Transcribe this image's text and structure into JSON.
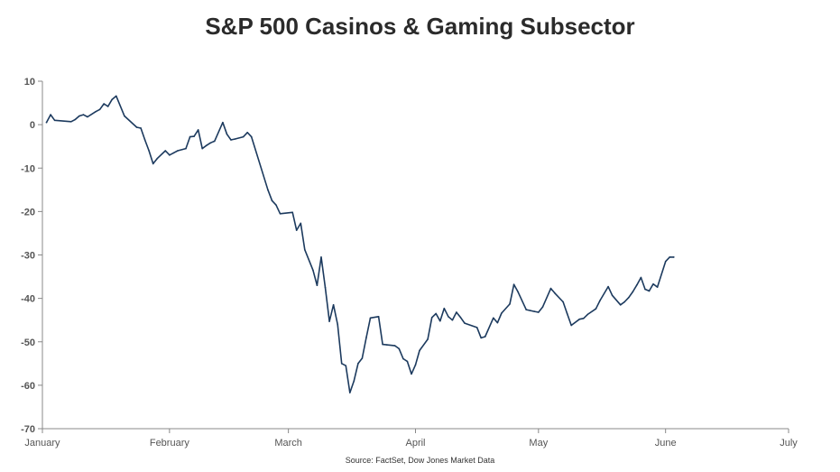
{
  "chart_data": {
    "type": "line",
    "title": "S&P 500 Casinos & Gaming Subsector",
    "source": "Source: FactSet, Dow Jones Market Data",
    "xlabel": "",
    "ylabel": "",
    "ylim": [
      -70,
      10
    ],
    "xlim": [
      "2020-01-01",
      "2020-07-01"
    ],
    "y_ticks": [
      10,
      0,
      -10,
      -20,
      -30,
      -40,
      -50,
      -60,
      -70
    ],
    "x_ticks": [
      {
        "label": "January",
        "date": "2020-01-01"
      },
      {
        "label": "February",
        "date": "2020-02-01"
      },
      {
        "label": "March",
        "date": "2020-03-01"
      },
      {
        "label": "April",
        "date": "2020-04-01"
      },
      {
        "label": "May",
        "date": "2020-05-01"
      },
      {
        "label": "June",
        "date": "2020-06-01"
      },
      {
        "label": "July",
        "date": "2020-07-01"
      }
    ],
    "grid": false,
    "line_color": "#1c3a5e",
    "series": [
      {
        "x": [
          "2020-01-02",
          "2020-01-03",
          "2020-01-04",
          "2020-01-08",
          "2020-01-09",
          "2020-01-10",
          "2020-01-11",
          "2020-01-12",
          "2020-01-14",
          "2020-01-15",
          "2020-01-16",
          "2020-01-17",
          "2020-01-18",
          "2020-01-19",
          "2020-01-21",
          "2020-01-24",
          "2020-01-25",
          "2020-01-26",
          "2020-01-27",
          "2020-01-28",
          "2020-01-29",
          "2020-01-31",
          "2020-02-01",
          "2020-02-02",
          "2020-02-03",
          "2020-02-05",
          "2020-02-06",
          "2020-02-07",
          "2020-02-08",
          "2020-02-09",
          "2020-02-10",
          "2020-02-11",
          "2020-02-12",
          "2020-02-14",
          "2020-02-15",
          "2020-02-16",
          "2020-02-17",
          "2020-02-19",
          "2020-02-20",
          "2020-02-21",
          "2020-02-25",
          "2020-02-26",
          "2020-02-27",
          "2020-02-28",
          "2020-03-02",
          "2020-03-03",
          "2020-03-04",
          "2020-03-05",
          "2020-03-07",
          "2020-03-08",
          "2020-03-09",
          "2020-03-10",
          "2020-03-11",
          "2020-03-12",
          "2020-03-13",
          "2020-03-14",
          "2020-03-15",
          "2020-03-16",
          "2020-03-17",
          "2020-03-18",
          "2020-03-19",
          "2020-03-20",
          "2020-03-21",
          "2020-03-23",
          "2020-03-24",
          "2020-03-25",
          "2020-03-27",
          "2020-03-28",
          "2020-03-29",
          "2020-03-30",
          "2020-03-31",
          "2020-04-01",
          "2020-04-02",
          "2020-04-04",
          "2020-04-05",
          "2020-04-06",
          "2020-04-07",
          "2020-04-08",
          "2020-04-09",
          "2020-04-10",
          "2020-04-11",
          "2020-04-12",
          "2020-04-13",
          "2020-04-16",
          "2020-04-17",
          "2020-04-18",
          "2020-04-20",
          "2020-04-21",
          "2020-04-22",
          "2020-04-24",
          "2020-04-25",
          "2020-04-26",
          "2020-04-28",
          "2020-04-29",
          "2020-04-30",
          "2020-05-01",
          "2020-05-02",
          "2020-05-04",
          "2020-05-05",
          "2020-05-07",
          "2020-05-08",
          "2020-05-09",
          "2020-05-11",
          "2020-05-12",
          "2020-05-13",
          "2020-05-15",
          "2020-05-16",
          "2020-05-18",
          "2020-05-19",
          "2020-05-21",
          "2020-05-22",
          "2020-05-23",
          "2020-05-24",
          "2020-05-25",
          "2020-05-26",
          "2020-05-27",
          "2020-05-28",
          "2020-05-29",
          "2020-05-30",
          "2020-06-01",
          "2020-06-02",
          "2020-06-03"
        ],
        "y": [
          0.5,
          2.3,
          1,
          0.7,
          1.2,
          2,
          2.3,
          1.8,
          3,
          3.5,
          4.8,
          4.2,
          5.8,
          6.6,
          2,
          -0.6,
          -0.8,
          -3.5,
          -6,
          -9,
          -7.8,
          -6,
          -7,
          -6.5,
          -6,
          -5.5,
          -2.8,
          -2.7,
          -1.2,
          -5.5,
          -4.8,
          -4.2,
          -3.8,
          0.5,
          -2.2,
          -3.5,
          -3.3,
          -2.8,
          -1.8,
          -2.8,
          -15,
          -17.5,
          -18.5,
          -20.5,
          -20.2,
          -24.3,
          -22.7,
          -28.8,
          -33.5,
          -37,
          -30.5,
          -37.5,
          -45.3,
          -41.5,
          -46,
          -55,
          -55.5,
          -61.7,
          -59,
          -55,
          -53.8,
          -49,
          -44.5,
          -44.2,
          -50.6,
          -50.7,
          -50.9,
          -51.6,
          -53.9,
          -54.5,
          -57.4,
          -55.3,
          -52,
          -49.4,
          -44.4,
          -43.5,
          -45.2,
          -42.3,
          -44.2,
          -45,
          -43.2,
          -44.4,
          -45.7,
          -46.7,
          -49.1,
          -48.8,
          -44.5,
          -45.6,
          -43.4,
          -41.3,
          -36.8,
          -38.5,
          -42.6,
          -42.8,
          -43,
          -43.2,
          -42,
          -37.7,
          -38.8,
          -40.8,
          -43.5,
          -46.2,
          -44.8,
          -44.6,
          -43.7,
          -42.4,
          -40.5,
          -37.3,
          -39.3,
          -41.5,
          -40.8,
          -39.8,
          -38.5,
          -36.9,
          -35.2,
          -37.9,
          -38.3,
          -36.7,
          -37.4,
          -31.5,
          -30.5,
          -30.5
        ]
      }
    ]
  }
}
